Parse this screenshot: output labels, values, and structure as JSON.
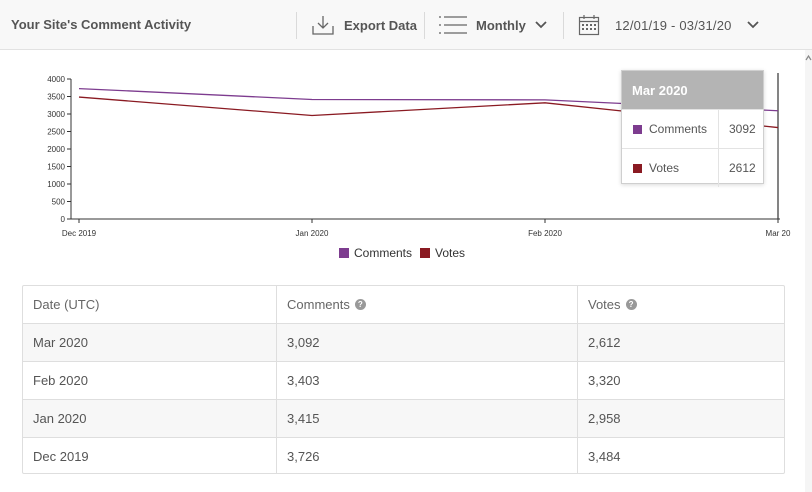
{
  "header": {
    "title": "Your Site's Comment Activity",
    "export_label": "Export Data",
    "period_label": "Monthly",
    "date_range": "12/01/19 - 03/31/20"
  },
  "chart_data": {
    "type": "line",
    "categories": [
      "Dec 2019",
      "Jan 2020",
      "Feb 2020",
      "Mar 2020"
    ],
    "x_tick_labels": [
      "Dec 2019",
      "Jan 2020",
      "Feb 2020",
      "Mar 20"
    ],
    "y_ticks": [
      "4000",
      "3500",
      "3000",
      "2500",
      "2000",
      "1500",
      "1000",
      "500",
      "0"
    ],
    "ylim": [
      0,
      4000
    ],
    "series": [
      {
        "name": "Comments",
        "color": "#7d3c8f",
        "values": [
          3726,
          3415,
          3403,
          3092
        ]
      },
      {
        "name": "Votes",
        "color": "#8a1a22",
        "values": [
          3484,
          2958,
          3320,
          2612
        ]
      }
    ],
    "legend": [
      "Comments",
      "Votes"
    ],
    "legend_position": "bottom",
    "grid": false
  },
  "tooltip": {
    "title": "Mar 2020",
    "rows": [
      {
        "name": "Comments",
        "value": "3092",
        "color": "#7d3c8f"
      },
      {
        "name": "Votes",
        "value": "2612",
        "color": "#8a1a22"
      }
    ]
  },
  "table": {
    "headers": [
      "Date (UTC)",
      "Comments",
      "Votes"
    ],
    "help_icon": "?",
    "rows": [
      [
        "Mar 2020",
        "3,092",
        "2,612"
      ],
      [
        "Feb 2020",
        "3,403",
        "3,320"
      ],
      [
        "Jan 2020",
        "3,415",
        "2,958"
      ],
      [
        "Dec 2019",
        "3,726",
        "3,484"
      ]
    ]
  }
}
